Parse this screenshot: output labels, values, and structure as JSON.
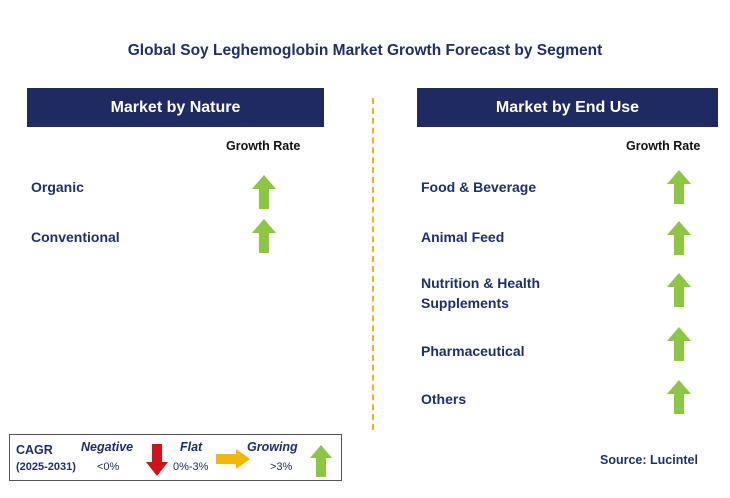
{
  "title": "Global Soy Leghemoglobin Market Growth Forecast by Segment",
  "left_panel": {
    "header": "Market by Nature",
    "growth_label": "Growth Rate",
    "rows": [
      {
        "label": "Organic",
        "trend": "growing",
        "icon": "up-arrow-icon"
      },
      {
        "label": "Conventional",
        "trend": "growing",
        "icon": "up-arrow-icon"
      }
    ]
  },
  "right_panel": {
    "header": "Market by End Use",
    "growth_label": "Growth Rate",
    "rows": [
      {
        "label": "Food & Beverage",
        "trend": "growing",
        "icon": "up-arrow-icon"
      },
      {
        "label": "Animal Feed",
        "trend": "growing",
        "icon": "up-arrow-icon"
      },
      {
        "label": "Nutrition & Health",
        "label2": "Supplements",
        "trend": "growing",
        "icon": "up-arrow-icon"
      },
      {
        "label": "Pharmaceutical",
        "trend": "growing",
        "icon": "up-arrow-icon"
      },
      {
        "label": "Others",
        "trend": "growing",
        "icon": "up-arrow-icon"
      }
    ]
  },
  "legend": {
    "cagr": "CAGR",
    "period": "(2025-2031)",
    "negative": "Negative",
    "negative_range": "<0%",
    "flat": "Flat",
    "flat_range": "0%-3%",
    "growing": "Growing",
    "growing_range": ">3%"
  },
  "source": "Source: Lucintel",
  "colors": {
    "header_bg": "#1f2a63",
    "text_navy": "#1f2f6b",
    "growing": "#8dc63f",
    "negative": "#d0121b",
    "flat": "#f5b800",
    "divider": "#f2b318"
  }
}
